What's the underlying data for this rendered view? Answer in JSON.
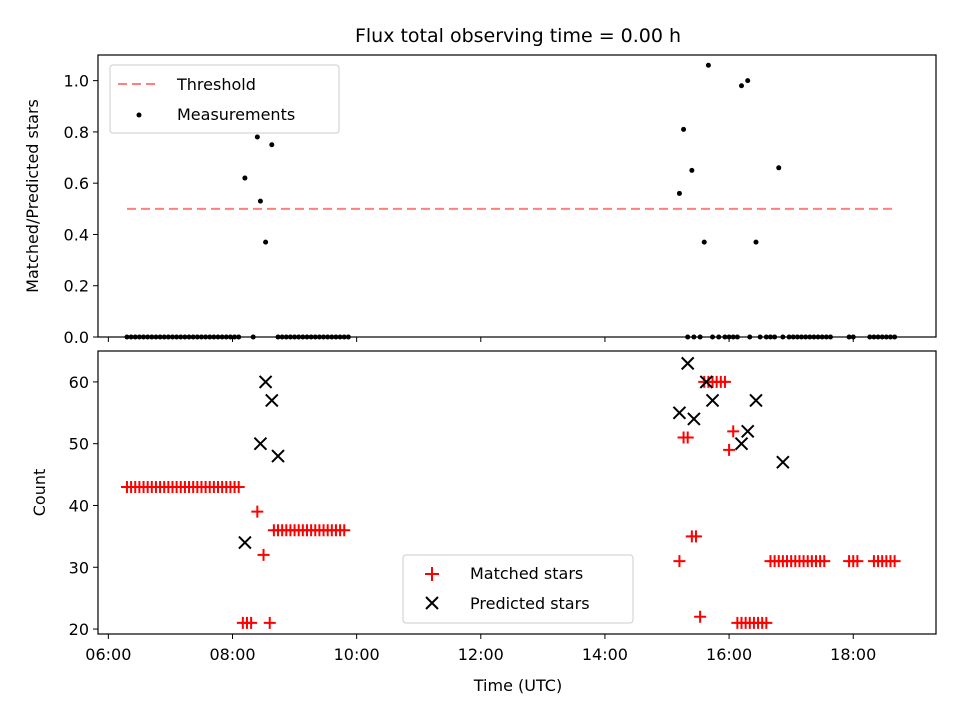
{
  "title": "Flux total observing time = 0.00 h",
  "chart_data": [
    {
      "type": "scatter",
      "ylabel": "Matched/Predicted stars",
      "xlim": [
        "05:50",
        "19:20"
      ],
      "ylim": [
        0,
        1.1
      ],
      "yticks": [
        0.0,
        0.2,
        0.4,
        0.6,
        0.8,
        1.0
      ],
      "ytick_labels": [
        "0.0",
        "0.2",
        "0.4",
        "0.6",
        "0.8",
        "1.0"
      ],
      "legend_position": "upper-left",
      "threshold": {
        "name": "Threshold",
        "value": 0.5,
        "x_start": "06:18",
        "x_end": "18:40",
        "color": "#ff7f7f"
      },
      "series": [
        {
          "name": "Measurements",
          "color": "#000000",
          "x": [
            "06:18",
            "06:22",
            "06:26",
            "06:30",
            "06:34",
            "06:38",
            "06:42",
            "06:46",
            "06:50",
            "06:54",
            "06:58",
            "07:02",
            "07:06",
            "07:10",
            "07:14",
            "07:18",
            "07:22",
            "07:26",
            "07:30",
            "07:34",
            "07:38",
            "07:42",
            "07:46",
            "07:50",
            "07:54",
            "07:58",
            "08:02",
            "08:06",
            "08:12",
            "08:20",
            "08:24",
            "08:27",
            "08:32",
            "08:38",
            "08:44",
            "08:48",
            "08:52",
            "08:56",
            "09:00",
            "09:04",
            "09:08",
            "09:12",
            "09:16",
            "09:20",
            "09:24",
            "09:28",
            "09:32",
            "09:36",
            "09:40",
            "09:44",
            "09:48",
            "09:52",
            "15:12",
            "15:16",
            "15:20",
            "15:24",
            "15:26",
            "15:32",
            "15:36",
            "15:40",
            "15:44",
            "15:50",
            "15:56",
            "16:00",
            "16:04",
            "16:08",
            "16:12",
            "16:18",
            "16:20",
            "16:26",
            "16:30",
            "16:36",
            "16:40",
            "16:44",
            "16:48",
            "16:52",
            "16:58",
            "17:02",
            "17:06",
            "17:10",
            "17:14",
            "17:18",
            "17:22",
            "17:26",
            "17:30",
            "17:34",
            "17:38",
            "17:56",
            "18:00",
            "18:16",
            "18:20",
            "18:24",
            "18:28",
            "18:32",
            "18:36",
            "18:40"
          ],
          "y": [
            0,
            0,
            0,
            0,
            0,
            0,
            0,
            0,
            0,
            0,
            0,
            0,
            0,
            0,
            0,
            0,
            0,
            0,
            0,
            0,
            0,
            0,
            0,
            0,
            0,
            0,
            0,
            0,
            0.62,
            0,
            0.78,
            0.53,
            0.37,
            0.75,
            0,
            0,
            0,
            0,
            0,
            0,
            0,
            0,
            0,
            0,
            0,
            0,
            0,
            0,
            0,
            0,
            0,
            0,
            0.56,
            0.81,
            0,
            0.65,
            0,
            0,
            0.37,
            1.06,
            0,
            0,
            0,
            0,
            0,
            0,
            0.98,
            1.0,
            0,
            0.37,
            0,
            0,
            0,
            0,
            0.66,
            0,
            0,
            0,
            0,
            0,
            0,
            0,
            0,
            0,
            0,
            0,
            0,
            0,
            0,
            0,
            0,
            0,
            0,
            0,
            0,
            0
          ]
        }
      ]
    },
    {
      "type": "scatter",
      "xlabel": "Time (UTC)",
      "ylabel": "Count",
      "xlim": [
        "05:50",
        "19:20"
      ],
      "ylim": [
        19.2,
        65
      ],
      "xticks": [
        "06:00",
        "08:00",
        "10:00",
        "12:00",
        "14:00",
        "16:00",
        "18:00"
      ],
      "xtick_labels": [
        "06:00",
        "08:00",
        "10:00",
        "12:00",
        "14:00",
        "16:00",
        "18:00"
      ],
      "yticks": [
        20,
        30,
        40,
        50,
        60
      ],
      "ytick_labels": [
        "20",
        "30",
        "40",
        "50",
        "60"
      ],
      "legend_position": "lower-center",
      "series": [
        {
          "name": "Matched stars",
          "marker": "plus",
          "color": "#ff0000",
          "x": [
            "06:18",
            "06:22",
            "06:26",
            "06:30",
            "06:34",
            "06:38",
            "06:42",
            "06:46",
            "06:50",
            "06:54",
            "06:58",
            "07:02",
            "07:06",
            "07:10",
            "07:14",
            "07:18",
            "07:22",
            "07:26",
            "07:30",
            "07:34",
            "07:38",
            "07:42",
            "07:46",
            "07:50",
            "07:54",
            "07:58",
            "08:02",
            "08:06",
            "08:10",
            "08:14",
            "08:18",
            "08:24",
            "08:30",
            "08:36",
            "08:40",
            "08:44",
            "08:48",
            "08:52",
            "08:56",
            "09:00",
            "09:04",
            "09:08",
            "09:12",
            "09:16",
            "09:20",
            "09:24",
            "09:28",
            "09:32",
            "09:36",
            "09:40",
            "09:44",
            "09:48",
            "15:12",
            "15:16",
            "15:20",
            "15:24",
            "15:28",
            "15:32",
            "15:36",
            "15:40",
            "15:44",
            "15:48",
            "15:52",
            "15:56",
            "16:00",
            "16:04",
            "16:08",
            "16:12",
            "16:16",
            "16:20",
            "16:24",
            "16:28",
            "16:32",
            "16:36",
            "16:40",
            "16:44",
            "16:48",
            "16:52",
            "16:56",
            "17:00",
            "17:04",
            "17:08",
            "17:12",
            "17:16",
            "17:20",
            "17:24",
            "17:28",
            "17:32",
            "17:56",
            "18:00",
            "18:04",
            "18:20",
            "18:24",
            "18:28",
            "18:32",
            "18:36",
            "18:40"
          ],
          "y": [
            43,
            43,
            43,
            43,
            43,
            43,
            43,
            43,
            43,
            43,
            43,
            43,
            43,
            43,
            43,
            43,
            43,
            43,
            43,
            43,
            43,
            43,
            43,
            43,
            43,
            43,
            43,
            43,
            21,
            21,
            21,
            39,
            32,
            21,
            36,
            36,
            36,
            36,
            36,
            36,
            36,
            36,
            36,
            36,
            36,
            36,
            36,
            36,
            36,
            36,
            36,
            36,
            31,
            51,
            51,
            35,
            35,
            22,
            60,
            60,
            60,
            60,
            60,
            60,
            49,
            52,
            21,
            21,
            21,
            21,
            21,
            21,
            21,
            21,
            31,
            31,
            31,
            31,
            31,
            31,
            31,
            31,
            31,
            31,
            31,
            31,
            31,
            31,
            31,
            31,
            31,
            31,
            31,
            31,
            31,
            31,
            31
          ]
        },
        {
          "name": "Predicted stars",
          "marker": "x",
          "color": "#000000",
          "x": [
            "08:12",
            "08:27",
            "08:32",
            "08:38",
            "08:44",
            "15:12",
            "15:20",
            "15:26",
            "15:38",
            "15:44",
            "16:12",
            "16:18",
            "16:26",
            "16:52"
          ],
          "y": [
            34,
            50,
            60,
            57,
            48,
            55,
            63,
            54,
            60,
            57,
            50,
            52,
            57,
            47
          ]
        }
      ]
    }
  ]
}
